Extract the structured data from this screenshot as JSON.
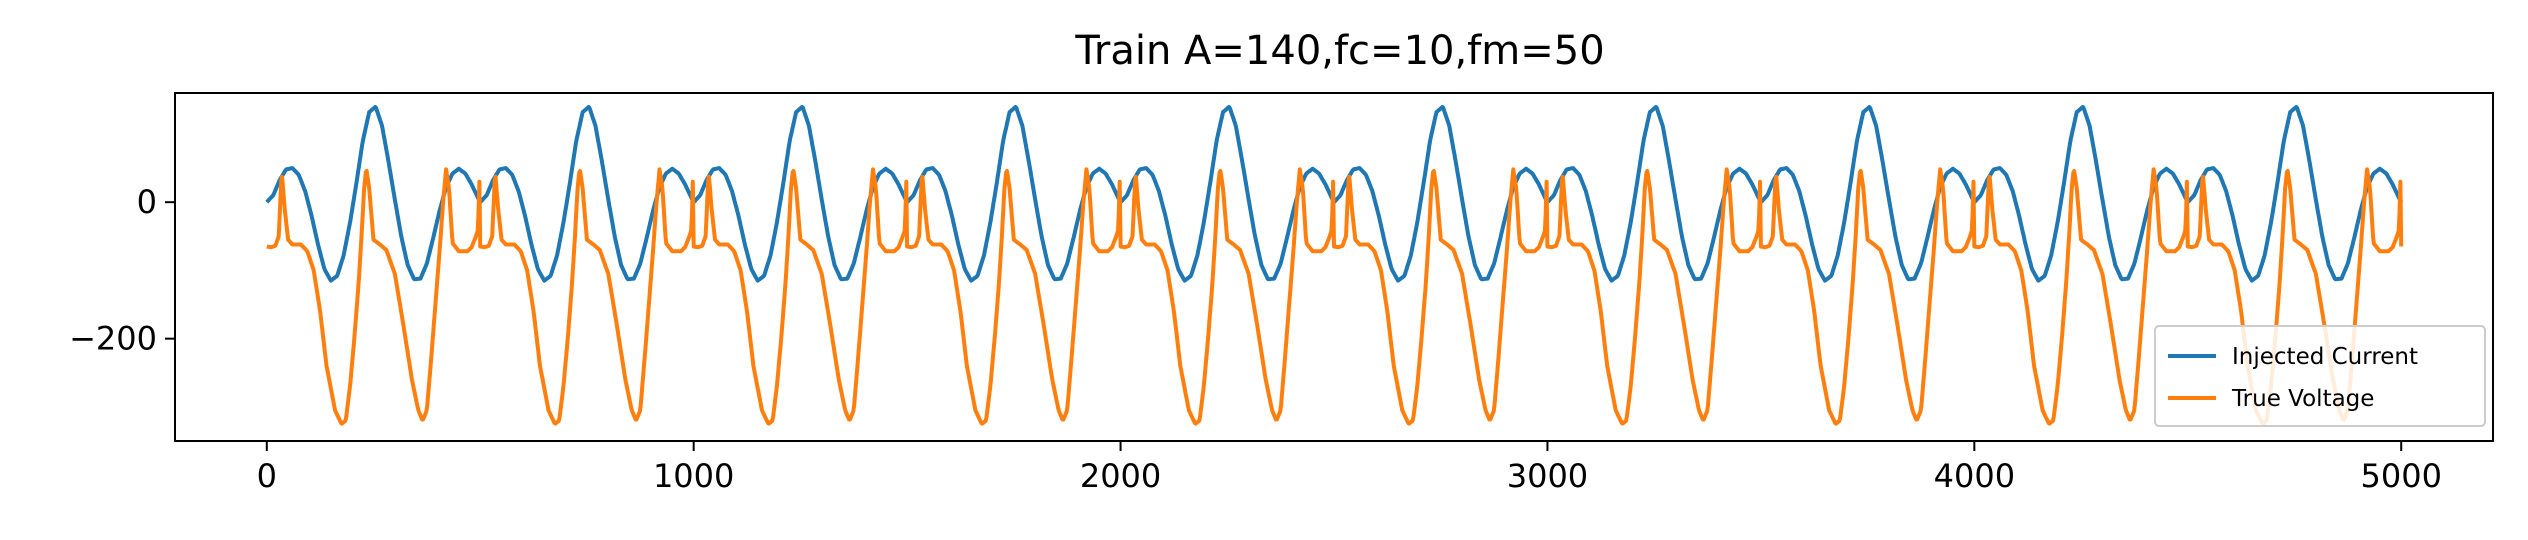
{
  "chart_data": {
    "type": "line",
    "title": "Train A=140,fc=10,fm=50",
    "xlabel": "",
    "ylabel": "",
    "xlim": [
      -215,
      5215
    ],
    "ylim": [
      -350,
      160
    ],
    "x_ticks": [
      0,
      1000,
      2000,
      3000,
      4000,
      5000
    ],
    "x_tick_labels": [
      "0",
      "1000",
      "2000",
      "3000",
      "4000",
      "5000"
    ],
    "y_ticks": [
      0,
      -200
    ],
    "y_tick_labels": [
      "0",
      "−200"
    ],
    "grid": false,
    "legend_position": "lower-right",
    "x_start": 0,
    "x_end": 5000,
    "series": [
      {
        "name": "Injected Current",
        "color": "#1f77b4",
        "period": 500,
        "samples": [
          [
            0,
            0
          ],
          [
            15,
            10
          ],
          [
            30,
            32
          ],
          [
            45,
            48
          ],
          [
            60,
            50
          ],
          [
            75,
            40
          ],
          [
            90,
            16
          ],
          [
            105,
            -20
          ],
          [
            120,
            -62
          ],
          [
            135,
            -98
          ],
          [
            150,
            -115
          ],
          [
            165,
            -108
          ],
          [
            180,
            -78
          ],
          [
            195,
            -30
          ],
          [
            210,
            28
          ],
          [
            225,
            90
          ],
          [
            240,
            132
          ],
          [
            255,
            140
          ],
          [
            270,
            112
          ],
          [
            285,
            60
          ],
          [
            300,
            4
          ],
          [
            315,
            -50
          ],
          [
            330,
            -92
          ],
          [
            345,
            -113
          ],
          [
            360,
            -112
          ],
          [
            375,
            -90
          ],
          [
            390,
            -52
          ],
          [
            405,
            -12
          ],
          [
            420,
            22
          ],
          [
            435,
            42
          ],
          [
            450,
            49
          ],
          [
            465,
            42
          ],
          [
            480,
            26
          ],
          [
            495,
            6
          ],
          [
            500,
            0
          ]
        ]
      },
      {
        "name": "True Voltage",
        "color": "#ff7f0e",
        "period": 500,
        "samples": [
          [
            0,
            -65
          ],
          [
            10,
            -66
          ],
          [
            20,
            -64
          ],
          [
            28,
            -50
          ],
          [
            35,
            45
          ],
          [
            42,
            -10
          ],
          [
            50,
            -55
          ],
          [
            60,
            -62
          ],
          [
            80,
            -62
          ],
          [
            95,
            -72
          ],
          [
            110,
            -100
          ],
          [
            125,
            -160
          ],
          [
            140,
            -240
          ],
          [
            160,
            -305
          ],
          [
            175,
            -325
          ],
          [
            185,
            -320
          ],
          [
            195,
            -270
          ],
          [
            205,
            -200
          ],
          [
            215,
            -120
          ],
          [
            222,
            -50
          ],
          [
            228,
            20
          ],
          [
            233,
            50
          ],
          [
            240,
            20
          ],
          [
            250,
            -55
          ],
          [
            265,
            -62
          ],
          [
            280,
            -70
          ],
          [
            300,
            -105
          ],
          [
            320,
            -180
          ],
          [
            340,
            -260
          ],
          [
            355,
            -305
          ],
          [
            365,
            -320
          ],
          [
            375,
            -305
          ],
          [
            385,
            -230
          ],
          [
            395,
            -150
          ],
          [
            405,
            -70
          ],
          [
            413,
            0
          ],
          [
            420,
            48
          ],
          [
            427,
            20
          ],
          [
            435,
            -60
          ],
          [
            450,
            -72
          ],
          [
            470,
            -72
          ],
          [
            480,
            -66
          ],
          [
            490,
            -50
          ],
          [
            495,
            -40
          ],
          [
            498,
            30
          ],
          [
            500,
            -65
          ]
        ]
      }
    ]
  }
}
